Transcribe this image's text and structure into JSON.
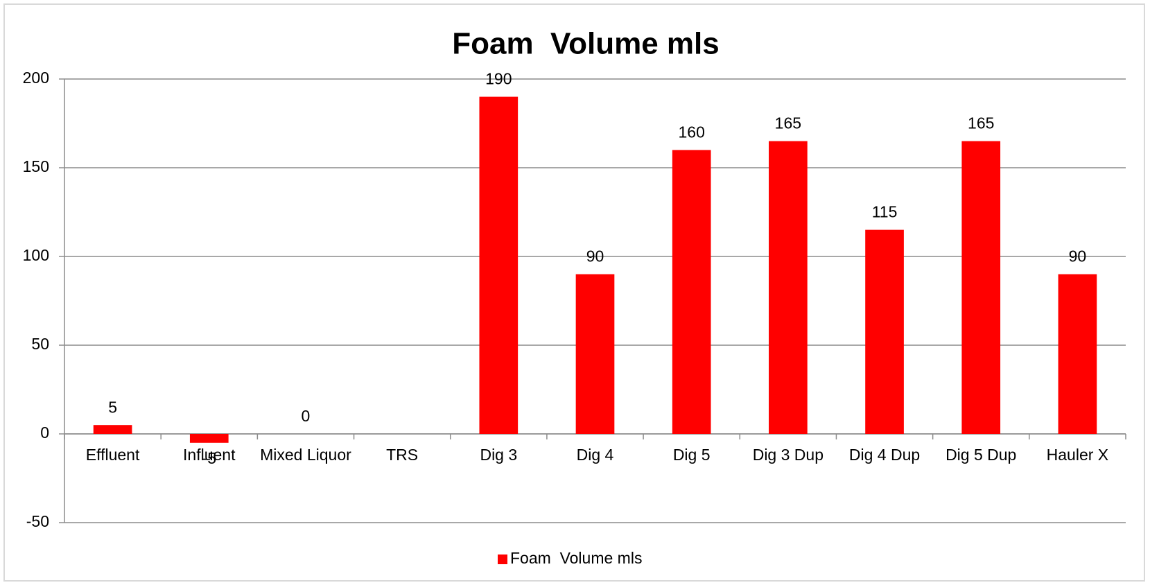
{
  "chart_data": {
    "type": "bar",
    "title": "Foam  Volume mls",
    "categories": [
      "Effluent",
      "Influent",
      "Mixed Liquor",
      "TRS",
      "Dig 3",
      "Dig 4",
      "Dig 5",
      "Dig 3 Dup",
      "Dig 4 Dup",
      "Dig 5 Dup",
      "Hauler X"
    ],
    "series": [
      {
        "name": "Foam  Volume mls",
        "color": "#ff0000",
        "values": [
          5,
          -5,
          0,
          null,
          190,
          90,
          160,
          165,
          115,
          165,
          90
        ]
      }
    ],
    "ylim": [
      -50,
      200
    ],
    "yticks": [
      -50,
      0,
      50,
      100,
      150,
      200
    ],
    "grid": true,
    "legend": "bottom"
  }
}
